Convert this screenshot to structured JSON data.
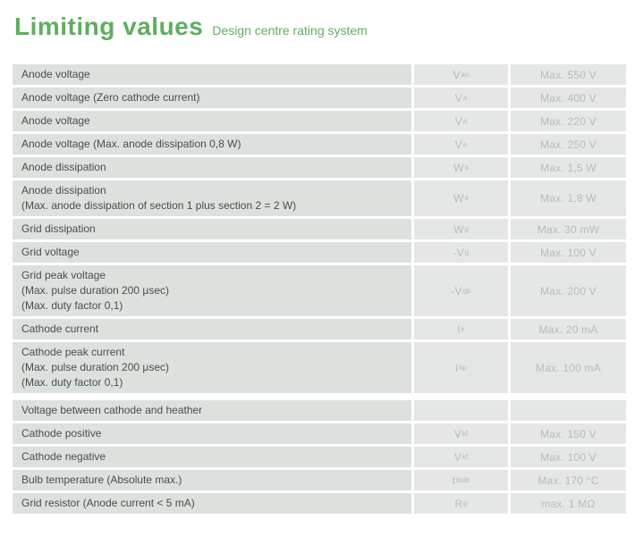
{
  "header": {
    "title": "Limiting values",
    "subtitle": "Design centre rating system"
  },
  "colors": {
    "accent_green": "#5fae5f",
    "label_cell_bg": "#dce1de",
    "value_cell_bg": "#e4e7e5",
    "label_text": "#474f4b",
    "muted_text": "#b7bdb9"
  },
  "table": {
    "columns": [
      "parameter",
      "symbol",
      "rating"
    ],
    "rows": [
      {
        "label_lines": [
          "Anode voltage"
        ],
        "symbol_base": "V",
        "symbol_sub": "ao",
        "value": "Max. 550 V",
        "section_gap": false
      },
      {
        "label_lines": [
          "Anode voltage (Zero cathode current)"
        ],
        "symbol_base": "V",
        "symbol_sub": "a",
        "value": "Max. 400 V",
        "section_gap": false
      },
      {
        "label_lines": [
          "Anode voltage"
        ],
        "symbol_base": "V",
        "symbol_sub": "a",
        "value": "Max. 220 V",
        "section_gap": false
      },
      {
        "label_lines": [
          "Anode voltage (Max. anode dissipation 0,8 W)"
        ],
        "symbol_base": "V",
        "symbol_sub": "a",
        "value": "Max. 250 V",
        "section_gap": false
      },
      {
        "label_lines": [
          "Anode dissipation"
        ],
        "symbol_base": "W",
        "symbol_sub": "a",
        "value": "Max. 1,5 W",
        "section_gap": false
      },
      {
        "label_lines": [
          "Anode dissipation",
          "(Max. anode dissipation of section 1 plus section 2 = 2 W)"
        ],
        "symbol_base": "W",
        "symbol_sub": "a",
        "value": "Max. 1,8 W",
        "section_gap": false
      },
      {
        "label_lines": [
          "Grid dissipation"
        ],
        "symbol_base": "W",
        "symbol_sub": "g",
        "value": "Max. 30 mW",
        "section_gap": false
      },
      {
        "label_lines": [
          "Grid voltage"
        ],
        "symbol_base": "-V",
        "symbol_sub": "g",
        "value": "Max. 100 V",
        "section_gap": false
      },
      {
        "label_lines": [
          "Grid peak voltage",
          "(Max. pulse duration 200 μsec)",
          "(Max. duty factor 0,1)"
        ],
        "symbol_base": "-V",
        "symbol_sub": "gp",
        "value": "Max. 200 V",
        "section_gap": false
      },
      {
        "label_lines": [
          "Cathode current"
        ],
        "symbol_base": "I",
        "symbol_sub": "k",
        "value": "Max. 20 mA",
        "section_gap": false
      },
      {
        "label_lines": [
          "Cathode peak current",
          "(Max. pulse duration 200 μsec)",
          "(Max. duty factor 0,1)"
        ],
        "symbol_base": "I",
        "symbol_sub": "kp",
        "value": "Max. 100 mA",
        "section_gap": false
      },
      {
        "label_lines": [
          "Voltage between cathode and heather"
        ],
        "symbol_base": "",
        "symbol_sub": "",
        "value": "",
        "section_gap": true
      },
      {
        "label_lines": [
          "Cathode positive"
        ],
        "symbol_base": "V",
        "symbol_sub": "kf",
        "value": "Max. 150 V",
        "section_gap": false
      },
      {
        "label_lines": [
          "Cathode negative"
        ],
        "symbol_base": "V",
        "symbol_sub": "kf",
        "value": "Max. 100 V",
        "section_gap": false
      },
      {
        "label_lines": [
          "Bulb temperature (Absolute max.)"
        ],
        "symbol_base": "t",
        "symbol_sub": "bulb",
        "value": "Max. 170 °C",
        "section_gap": false
      },
      {
        "label_lines": [
          "Grid resistor (Anode current < 5 mA)"
        ],
        "symbol_base": "R",
        "symbol_sub": "g",
        "value": "max. 1 MΩ",
        "section_gap": false
      }
    ]
  }
}
